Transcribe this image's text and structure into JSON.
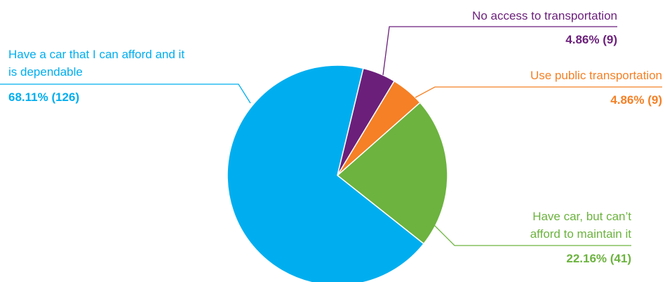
{
  "chart_data": {
    "type": "pie",
    "slices": [
      {
        "label_lines": [
          "Have a car that I can afford and it",
          "is dependable"
        ],
        "percent_label": "68.11% (126)",
        "percent": 68.11,
        "count": 126,
        "color": "#00AEEF"
      },
      {
        "label_lines": [
          "No access to transportation"
        ],
        "percent_label": "4.86% (9)",
        "percent": 4.86,
        "count": 9,
        "color": "#6B1F7B"
      },
      {
        "label_lines": [
          "Use public transportation"
        ],
        "percent_label": "4.86% (9)",
        "percent": 4.86,
        "count": 9,
        "color": "#F58025"
      },
      {
        "label_lines": [
          "Have car, but can’t",
          "afford to maintain it"
        ],
        "percent_label": "22.16% (41)",
        "percent": 22.16,
        "count": 41,
        "color": "#6CB33F"
      }
    ]
  }
}
